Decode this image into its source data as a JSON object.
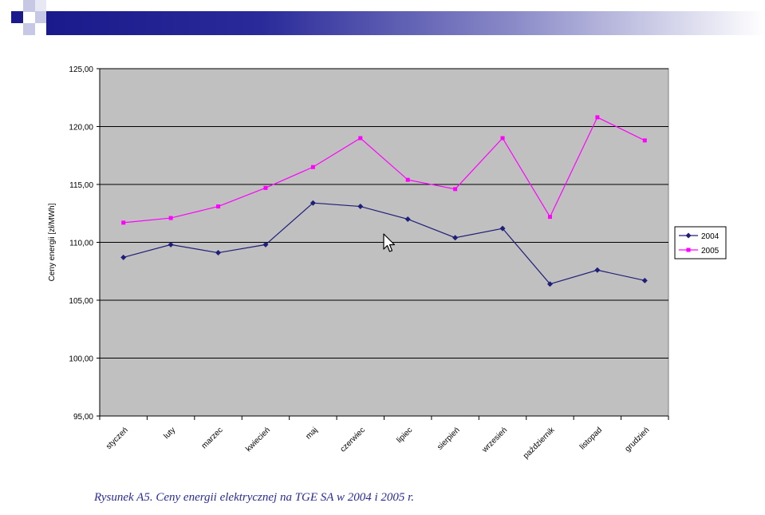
{
  "colors": {
    "header_dark": "#1a1a8c",
    "plot_bg": "#c0c0c0",
    "series_2004": "#1f1f7a",
    "series_2005": "#ff00ff"
  },
  "chart_data": {
    "type": "line",
    "ylabel": "Ceny energii [zł/MWh]",
    "xlabel": "",
    "ylim": [
      95,
      125
    ],
    "yticks": [
      "95,00",
      "100,00",
      "105,00",
      "110,00",
      "115,00",
      "120,00",
      "125,00"
    ],
    "categories": [
      "styczeń",
      "luty",
      "marzec",
      "kwiecień",
      "maj",
      "czerwiec",
      "lipiec",
      "sierpień",
      "wrzesień",
      "październik",
      "listopad",
      "grudzień"
    ],
    "series": [
      {
        "name": "2004",
        "color": "#1f1f7a",
        "marker": "diamond",
        "values": [
          108.7,
          109.8,
          109.1,
          109.8,
          113.4,
          113.1,
          112.0,
          110.4,
          111.2,
          106.4,
          107.6,
          106.7
        ]
      },
      {
        "name": "2005",
        "color": "#ff00ff",
        "marker": "square",
        "values": [
          111.7,
          112.1,
          113.1,
          114.7,
          116.5,
          119.0,
          115.4,
          114.6,
          119.0,
          112.2,
          120.8,
          118.8
        ]
      }
    ],
    "grid": true,
    "legend": "right"
  },
  "caption": "Rysunek A5. Ceny energii elektrycznej na TGE SA w 2004 i 2005 r."
}
